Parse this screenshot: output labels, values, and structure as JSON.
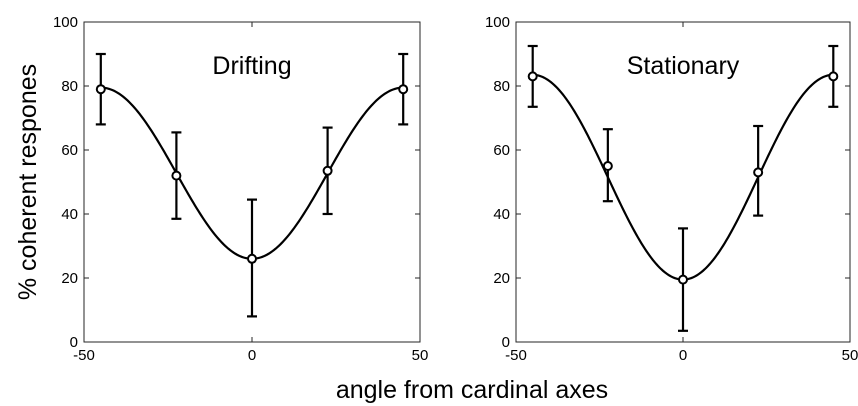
{
  "figure": {
    "shared_xlabel": "angle from cardinal axes",
    "shared_ylabel": "% coherent respones"
  },
  "chart_data": [
    {
      "type": "scatter",
      "title": "Drifting",
      "xlabel": "angle from cardinal axes",
      "ylabel": "% coherent respones",
      "xlim": [
        -50,
        50
      ],
      "ylim": [
        0,
        100
      ],
      "xticks": [
        -50,
        0,
        50
      ],
      "yticks": [
        0,
        20,
        40,
        60,
        80,
        100
      ],
      "grid": false,
      "series": [
        {
          "points": [
            {
              "x": -45,
              "y": 79,
              "err_low": 68,
              "err_high": 90
            },
            {
              "x": -22.5,
              "y": 52,
              "err_low": 38.5,
              "err_high": 65.5
            },
            {
              "x": 0,
              "y": 26,
              "err_low": 8,
              "err_high": 44.5
            },
            {
              "x": 22.5,
              "y": 53.5,
              "err_low": 40,
              "err_high": 67
            },
            {
              "x": 45,
              "y": 79,
              "err_low": 68,
              "err_high": 90
            }
          ],
          "fit_curve": {
            "baseline": 26,
            "peak": 79.5
          }
        }
      ]
    },
    {
      "type": "scatter",
      "title": "Stationary",
      "xlabel": "angle from cardinal axes",
      "ylabel": "% coherent respones",
      "xlim": [
        -50,
        50
      ],
      "ylim": [
        0,
        100
      ],
      "xticks": [
        -50,
        0,
        50
      ],
      "yticks": [
        0,
        20,
        40,
        60,
        80,
        100
      ],
      "grid": false,
      "series": [
        {
          "points": [
            {
              "x": -45,
              "y": 83,
              "err_low": 73.5,
              "err_high": 92.5
            },
            {
              "x": -22.5,
              "y": 55,
              "err_low": 44,
              "err_high": 66.5
            },
            {
              "x": 0,
              "y": 19.5,
              "err_low": 3.5,
              "err_high": 35.5
            },
            {
              "x": 22.5,
              "y": 53,
              "err_low": 39.5,
              "err_high": 67.5
            },
            {
              "x": 45,
              "y": 83,
              "err_low": 73.5,
              "err_high": 92.5
            }
          ],
          "fit_curve": {
            "baseline": 19.5,
            "peak": 83.5
          }
        }
      ]
    }
  ]
}
